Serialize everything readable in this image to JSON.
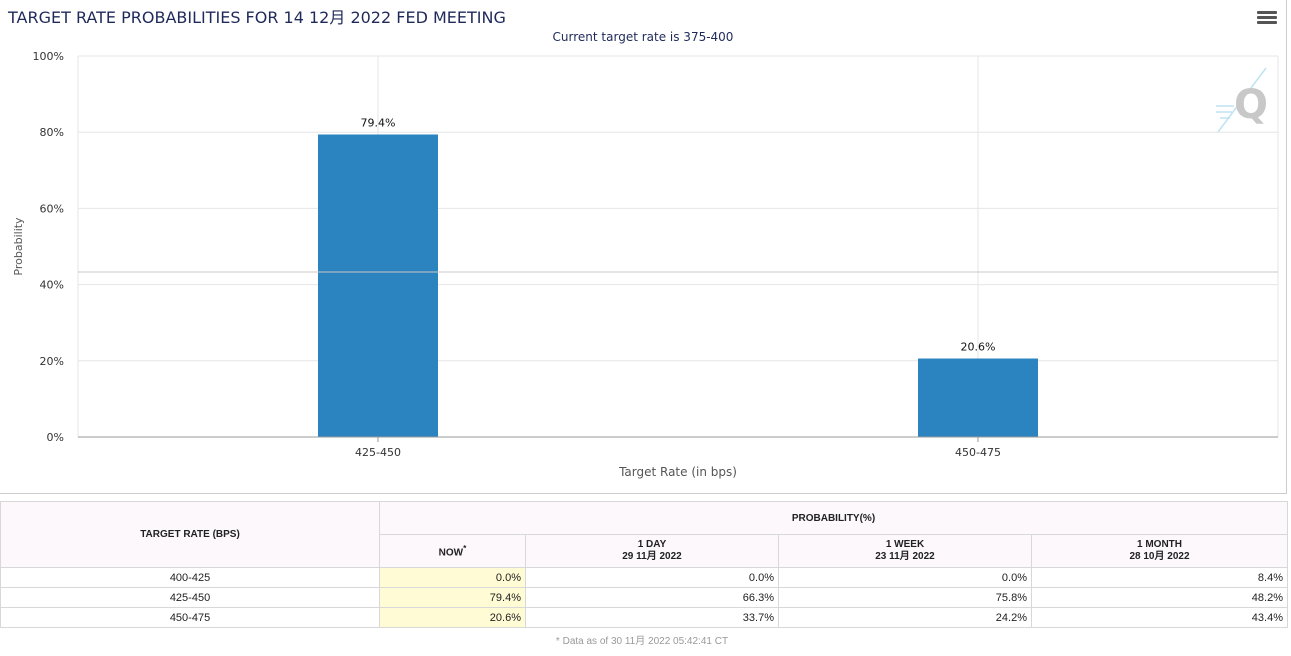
{
  "header": {
    "title": "TARGET RATE PROBABILITIES FOR 14 12月 2022 FED MEETING",
    "menu_icon": "hamburger-menu-icon",
    "watermark_icon": "q-logo-icon"
  },
  "chart_data": {
    "type": "bar",
    "title": "TARGET RATE PROBABILITIES FOR 14 12月 2022 FED MEETING",
    "subtitle": "Current target rate is 375-400",
    "categories": [
      "425-450",
      "450-475"
    ],
    "values": [
      79.4,
      20.6
    ],
    "data_labels": [
      "79.4%",
      "20.6%"
    ],
    "xlabel": "Target Rate (in bps)",
    "ylabel": "Probability",
    "ylim": [
      0,
      100
    ],
    "yticks": [
      "0%",
      "20%",
      "40%",
      "60%",
      "80%",
      "100%"
    ],
    "grid": true,
    "bar_color": "#2b83c0"
  },
  "table": {
    "rate_header": "TARGET RATE (BPS)",
    "prob_header": "PROBABILITY(%)",
    "columns": [
      {
        "label": "NOW",
        "sup": "*",
        "date": ""
      },
      {
        "label": "1 DAY",
        "sup": "",
        "date": "29 11月 2022"
      },
      {
        "label": "1 WEEK",
        "sup": "",
        "date": "23 11月 2022"
      },
      {
        "label": "1 MONTH",
        "sup": "",
        "date": "28 10月 2022"
      }
    ],
    "rows": [
      {
        "rate": "400-425",
        "values": [
          "0.0%",
          "0.0%",
          "0.0%",
          "8.4%"
        ]
      },
      {
        "rate": "425-450",
        "values": [
          "79.4%",
          "66.3%",
          "75.8%",
          "48.2%"
        ]
      },
      {
        "rate": "450-475",
        "values": [
          "20.6%",
          "33.7%",
          "24.2%",
          "43.4%"
        ]
      }
    ],
    "footnote": "* Data as of 30 11月 2022 05:42:41 CT"
  }
}
